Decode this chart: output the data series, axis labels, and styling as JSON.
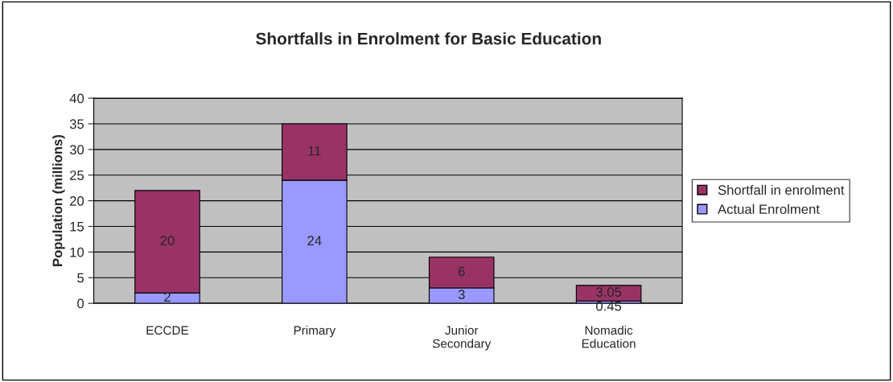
{
  "chart_data": {
    "type": "bar",
    "title": "Shortfalls in Enrolment for Basic Education",
    "ylabel": "Population (millions)",
    "categories": [
      "ECCDE",
      "Primary",
      "Junior\nSecondary",
      "Nomadic\nEducation"
    ],
    "series": [
      {
        "name": "Actual Enrolment",
        "color": "#9999ff",
        "values": [
          2,
          24,
          3,
          0.45
        ]
      },
      {
        "name": "Shortfall in enrolment",
        "color": "#993366",
        "values": [
          20,
          11,
          6,
          3.05
        ]
      }
    ],
    "stacked": true,
    "ylim": [
      0,
      40
    ],
    "yticks": [
      0,
      5,
      10,
      15,
      20,
      25,
      30,
      35,
      40
    ],
    "grid": "y",
    "legend": "right",
    "data_labels": true
  }
}
